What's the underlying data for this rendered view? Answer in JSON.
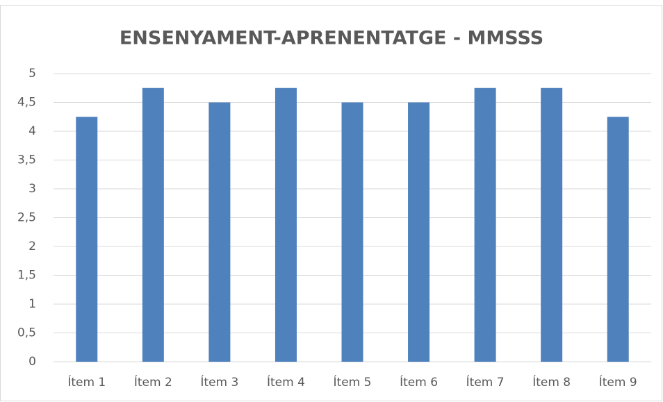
{
  "chart_data": {
    "type": "bar",
    "title": "ENSENYAMENT-APRENENTATGE - MMSSS",
    "categories": [
      "Ítem 1",
      "Ítem 2",
      "Ítem 3",
      "Ítem 4",
      "Ítem 5",
      "Ítem 6",
      "Ítem 7",
      "Ítem 8",
      "Ítem 9"
    ],
    "values": [
      4.25,
      4.75,
      4.5,
      4.75,
      4.5,
      4.5,
      4.75,
      4.75,
      4.25
    ],
    "color": "#4f81bd",
    "ylim": [
      0,
      5
    ],
    "yticks": [
      0,
      {
        "value": 0.5,
        "label": "0,5"
      },
      1,
      {
        "value": 1.5,
        "label": "1,5"
      },
      2,
      {
        "value": 2.5,
        "label": "2,5"
      },
      3,
      {
        "value": 3.5,
        "label": "3,5"
      },
      4,
      {
        "value": 4.5,
        "label": "4,5"
      },
      5
    ],
    "grid": true
  }
}
